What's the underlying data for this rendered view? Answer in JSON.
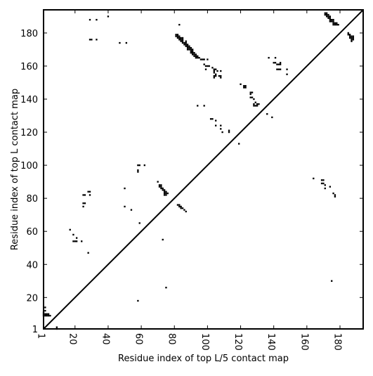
{
  "chart_data": {
    "type": "scatter",
    "title": "",
    "xlabel": "Residue index of top L/5 contact map",
    "ylabel": "Residue index of top L contact map",
    "xlim": [
      1,
      194
    ],
    "ylim": [
      1,
      194
    ],
    "x_ticks": [
      1,
      20,
      40,
      60,
      80,
      100,
      120,
      140,
      160,
      180
    ],
    "y_ticks": [
      1,
      20,
      40,
      60,
      80,
      100,
      120,
      140,
      160,
      180
    ],
    "x_tick_labels": [
      "1",
      "20",
      "40",
      "60",
      "80",
      "100",
      "120",
      "140",
      "160",
      "180"
    ],
    "y_tick_labels": [
      "1",
      "20",
      "40",
      "60",
      "80",
      "100",
      "120",
      "140",
      "160",
      "180"
    ],
    "diagonal": [
      [
        1,
        1
      ],
      [
        194,
        194
      ]
    ],
    "grid": false,
    "marker_color": "#000000",
    "series": [
      {
        "values": [
          [
            1,
            9
          ],
          [
            2,
            9
          ],
          [
            3,
            9
          ],
          [
            4,
            9
          ],
          [
            5,
            9
          ],
          [
            1,
            10
          ],
          [
            2,
            10
          ],
          [
            3,
            10
          ],
          [
            4,
            10
          ],
          [
            1,
            11
          ],
          [
            2,
            12
          ],
          [
            2,
            14
          ],
          [
            9,
            1
          ],
          [
            9,
            2
          ],
          [
            19,
            54
          ],
          [
            20,
            54
          ],
          [
            21,
            54
          ],
          [
            21,
            56
          ],
          [
            19,
            58
          ],
          [
            17,
            61
          ],
          [
            24,
            54
          ],
          [
            25,
            75
          ],
          [
            25,
            77
          ],
          [
            26,
            77
          ],
          [
            25,
            82
          ],
          [
            26,
            82
          ],
          [
            28,
            47
          ],
          [
            28,
            84
          ],
          [
            29,
            84
          ],
          [
            29,
            82
          ],
          [
            29,
            176
          ],
          [
            30,
            176
          ],
          [
            29,
            188
          ],
          [
            33,
            188
          ],
          [
            33,
            176
          ],
          [
            40,
            190
          ],
          [
            47,
            174
          ],
          [
            51,
            174
          ],
          [
            50,
            75
          ],
          [
            50,
            86
          ],
          [
            54,
            73
          ],
          [
            58,
            18
          ],
          [
            58,
            96
          ],
          [
            58,
            97
          ],
          [
            58,
            100
          ],
          [
            59,
            100
          ],
          [
            59,
            65
          ],
          [
            62,
            100
          ],
          [
            70,
            90
          ],
          [
            71,
            88
          ],
          [
            72,
            88
          ],
          [
            71,
            87
          ],
          [
            72,
            87
          ],
          [
            72,
            86
          ],
          [
            73,
            86
          ],
          [
            73,
            85
          ],
          [
            74,
            85
          ],
          [
            74,
            84
          ],
          [
            75,
            84
          ],
          [
            74,
            83
          ],
          [
            75,
            83
          ],
          [
            76,
            83
          ],
          [
            74,
            82
          ],
          [
            75,
            82
          ],
          [
            73,
            55
          ],
          [
            75,
            26
          ],
          [
            82,
            76
          ],
          [
            83,
            76
          ],
          [
            83,
            75
          ],
          [
            84,
            75
          ],
          [
            84,
            74
          ],
          [
            85,
            74
          ],
          [
            86,
            73
          ],
          [
            87,
            72
          ],
          [
            81,
            179
          ],
          [
            82,
            179
          ],
          [
            81,
            178
          ],
          [
            82,
            178
          ],
          [
            83,
            178
          ],
          [
            82,
            177
          ],
          [
            83,
            177
          ],
          [
            84,
            177
          ],
          [
            85,
            177
          ],
          [
            83,
            176
          ],
          [
            84,
            176
          ],
          [
            85,
            176
          ],
          [
            84,
            175
          ],
          [
            85,
            175
          ],
          [
            85,
            174
          ],
          [
            86,
            174
          ],
          [
            87,
            174
          ],
          [
            86,
            173
          ],
          [
            87,
            173
          ],
          [
            88,
            173
          ],
          [
            87,
            172
          ],
          [
            88,
            172
          ],
          [
            89,
            172
          ],
          [
            88,
            171
          ],
          [
            89,
            171
          ],
          [
            90,
            171
          ],
          [
            88,
            170
          ],
          [
            89,
            170
          ],
          [
            90,
            170
          ],
          [
            91,
            170
          ],
          [
            90,
            169
          ],
          [
            91,
            169
          ],
          [
            90,
            168
          ],
          [
            91,
            168
          ],
          [
            92,
            168
          ],
          [
            91,
            167
          ],
          [
            92,
            167
          ],
          [
            93,
            167
          ],
          [
            92,
            166
          ],
          [
            93,
            166
          ],
          [
            94,
            166
          ],
          [
            93,
            165
          ],
          [
            94,
            165
          ],
          [
            95,
            165
          ],
          [
            96,
            164
          ],
          [
            97,
            164
          ],
          [
            98,
            164
          ],
          [
            100,
            164
          ],
          [
            83,
            185
          ],
          [
            87,
            175
          ],
          [
            98,
            161
          ],
          [
            99,
            160
          ],
          [
            100,
            160
          ],
          [
            101,
            160
          ],
          [
            99,
            158
          ],
          [
            103,
            159
          ],
          [
            104,
            158
          ],
          [
            105,
            158
          ],
          [
            104,
            157
          ],
          [
            106,
            157
          ],
          [
            108,
            157
          ],
          [
            104,
            156
          ],
          [
            105,
            155
          ],
          [
            104,
            154
          ],
          [
            105,
            154
          ],
          [
            107,
            154
          ],
          [
            108,
            154
          ],
          [
            108,
            153
          ],
          [
            104,
            153
          ],
          [
            94,
            136
          ],
          [
            98,
            136
          ],
          [
            102,
            128
          ],
          [
            103,
            128
          ],
          [
            105,
            127
          ],
          [
            105,
            124
          ],
          [
            108,
            124
          ],
          [
            108,
            122
          ],
          [
            109,
            120
          ],
          [
            113,
            121
          ],
          [
            113,
            120
          ],
          [
            119,
            113
          ],
          [
            120,
            149
          ],
          [
            122,
            148
          ],
          [
            123,
            148
          ],
          [
            122,
            147
          ],
          [
            123,
            147
          ],
          [
            126,
            144
          ],
          [
            127,
            144
          ],
          [
            126,
            143
          ],
          [
            126,
            141
          ],
          [
            127,
            141
          ],
          [
            128,
            140
          ],
          [
            129,
            138
          ],
          [
            128,
            137
          ],
          [
            130,
            137
          ],
          [
            131,
            137
          ],
          [
            128,
            136
          ],
          [
            129,
            136
          ],
          [
            130,
            136
          ],
          [
            136,
            131
          ],
          [
            139,
            129
          ],
          [
            137,
            165
          ],
          [
            141,
            165
          ],
          [
            140,
            162
          ],
          [
            141,
            162
          ],
          [
            142,
            161
          ],
          [
            143,
            161
          ],
          [
            144,
            161
          ],
          [
            144,
            162
          ],
          [
            142,
            158
          ],
          [
            143,
            158
          ],
          [
            144,
            158
          ],
          [
            148,
            158
          ],
          [
            148,
            155
          ],
          [
            164,
            92
          ],
          [
            169,
            91
          ],
          [
            170,
            91
          ],
          [
            169,
            89
          ],
          [
            170,
            89
          ],
          [
            171,
            88
          ],
          [
            171,
            86
          ],
          [
            174,
            87
          ],
          [
            175,
            30
          ],
          [
            176,
            83
          ],
          [
            177,
            82
          ],
          [
            177,
            81
          ],
          [
            171,
            192
          ],
          [
            172,
            192
          ],
          [
            171,
            191
          ],
          [
            172,
            191
          ],
          [
            173,
            191
          ],
          [
            172,
            190
          ],
          [
            173,
            190
          ],
          [
            174,
            190
          ],
          [
            173,
            189
          ],
          [
            174,
            189
          ],
          [
            174,
            188
          ],
          [
            175,
            188
          ],
          [
            176,
            188
          ],
          [
            174,
            187
          ],
          [
            175,
            187
          ],
          [
            176,
            187
          ],
          [
            176,
            186
          ],
          [
            177,
            186
          ],
          [
            178,
            186
          ],
          [
            176,
            185
          ],
          [
            177,
            185
          ],
          [
            178,
            185
          ],
          [
            179,
            185
          ],
          [
            185,
            180
          ],
          [
            185,
            179
          ],
          [
            186,
            179
          ],
          [
            186,
            178
          ],
          [
            187,
            178
          ],
          [
            188,
            178
          ],
          [
            186,
            177
          ],
          [
            187,
            177
          ],
          [
            188,
            177
          ],
          [
            187,
            176
          ],
          [
            188,
            176
          ],
          [
            187,
            175
          ]
        ]
      }
    ]
  }
}
